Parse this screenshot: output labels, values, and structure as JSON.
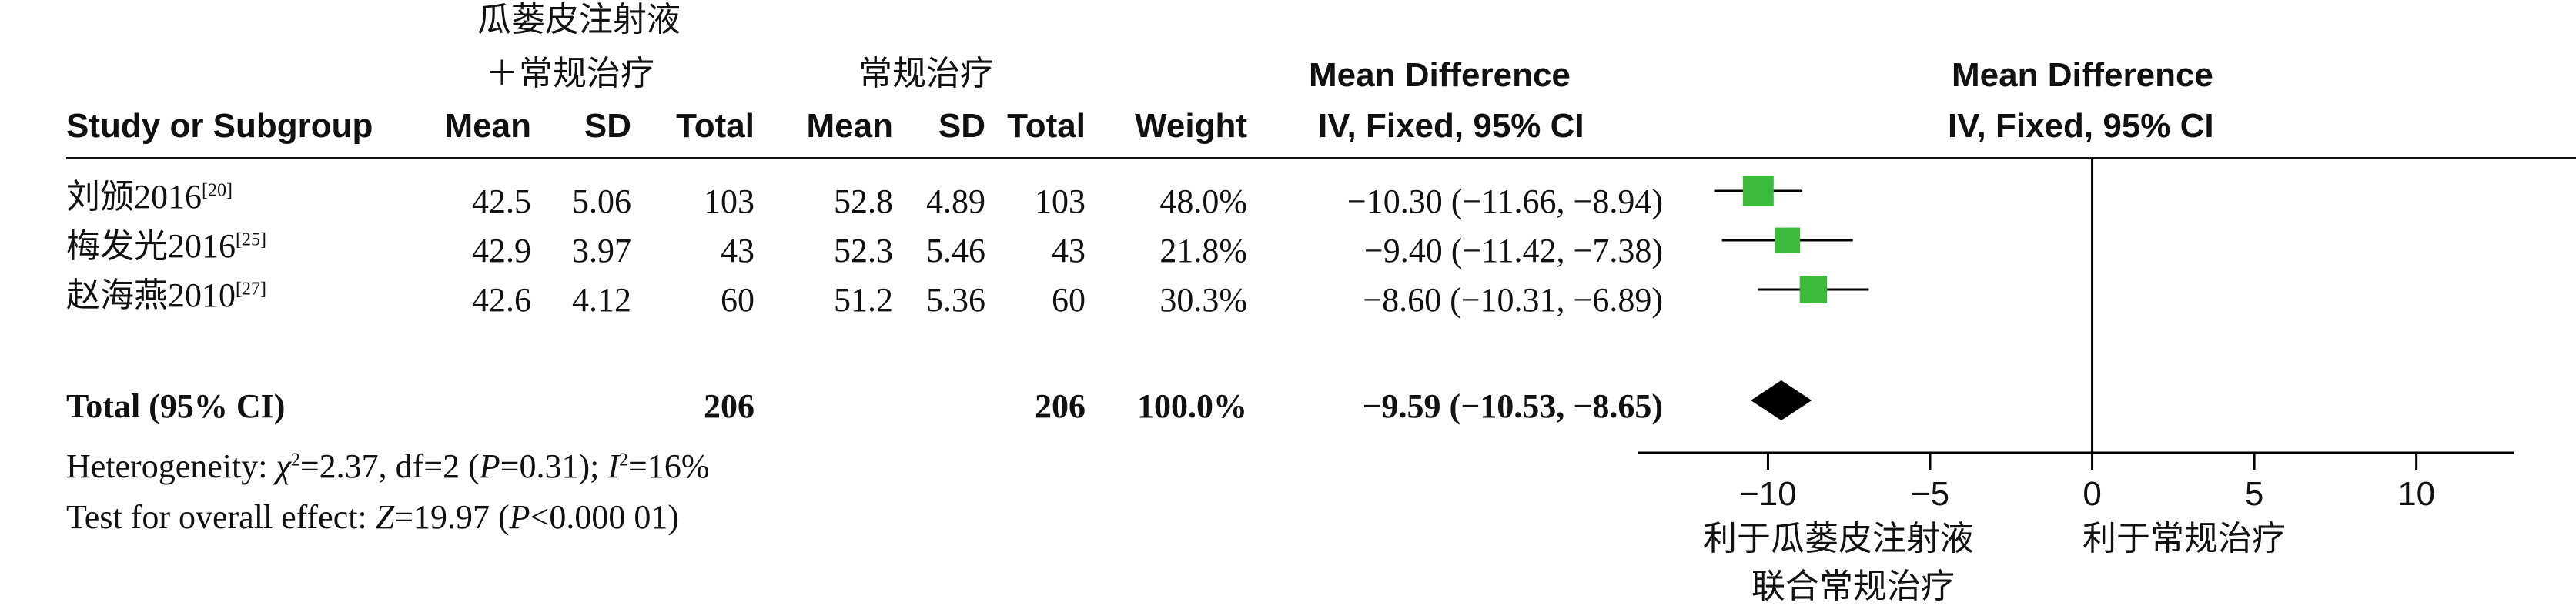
{
  "headers": {
    "group1_line1": "瓜蒌皮注射液",
    "group1_line2": "＋常规治疗",
    "group2": "常规治疗",
    "study": "Study or Subgroup",
    "mean1": "Mean",
    "sd1": "SD",
    "total1": "Total",
    "mean2": "Mean",
    "sd2": "SD",
    "total2": "Total",
    "weight": "Weight",
    "md_title": "Mean Difference",
    "md_sub": "IV, Fixed, 95% CI",
    "plot_title": "Mean Difference",
    "plot_sub": "IV, Fixed, 95% CI"
  },
  "studies": [
    {
      "name": "刘颁2016",
      "ref": "[20]",
      "mean1": "42.5",
      "sd1": "5.06",
      "total1": "103",
      "mean2": "52.8",
      "sd2": "4.89",
      "total2": "103",
      "weight": "48.0%",
      "ci_text": "−10.30 (−11.66, −8.94)"
    },
    {
      "name": "梅发光2016",
      "ref": "[25]",
      "mean1": "42.9",
      "sd1": "3.97",
      "total1": "43",
      "mean2": "52.3",
      "sd2": "5.46",
      "total2": "43",
      "weight": "21.8%",
      "ci_text": "−9.40 (−11.42, −7.38)"
    },
    {
      "name": "赵海燕2010",
      "ref": "[27]",
      "mean1": "42.6",
      "sd1": "4.12",
      "total1": "60",
      "mean2": "51.2",
      "sd2": "5.36",
      "total2": "60",
      "weight": "30.3%",
      "ci_text": "−8.60 (−10.31, −6.89)"
    }
  ],
  "total": {
    "label": "Total (95% CI)",
    "total1": "206",
    "total2": "206",
    "weight": "100.0%",
    "ci_text": "−9.59 (−10.53, −8.65)"
  },
  "heterogeneity": {
    "prefix": "Heterogeneity: ",
    "chi": "χ",
    "chi_sup": "2",
    "chi_rest": "=2.37, df=2 (",
    "p": "P",
    "p_rest": "=0.31); ",
    "i": "I",
    "i_sup": "2",
    "i_rest": "=16%"
  },
  "overall": {
    "prefix": "Test for overall effect: ",
    "z": "Z",
    "z_rest": "=19.97 (",
    "p": "P",
    "p_rest": "<0.000 01)"
  },
  "favours": {
    "left_line1": "利于瓜蒌皮注射液",
    "left_line2": "联合常规治疗",
    "right": "利于常规治疗"
  },
  "colors": {
    "marker": "#3cba3c",
    "diamond": "#000000",
    "line": "#000000"
  },
  "chart_data": {
    "type": "forest",
    "axis": {
      "min": -14,
      "max": 13,
      "ticks": [
        -10,
        -5,
        0,
        5,
        10
      ],
      "tick_labels": [
        "−10",
        "−5",
        "0",
        "5",
        "10"
      ]
    },
    "studies": [
      {
        "md": -10.3,
        "lo": -11.66,
        "hi": -8.94,
        "weight": 48.0
      },
      {
        "md": -9.4,
        "lo": -11.42,
        "hi": -7.38,
        "weight": 21.8
      },
      {
        "md": -8.6,
        "lo": -10.31,
        "hi": -6.89,
        "weight": 30.3
      }
    ],
    "pooled": {
      "md": -9.59,
      "lo": -10.53,
      "hi": -8.65
    }
  }
}
